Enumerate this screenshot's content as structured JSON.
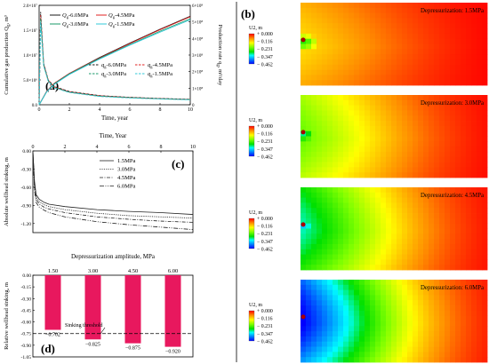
{
  "panel_a": {
    "label": "(a)",
    "ylabel_left": "Cumulative gas production Q",
    "ylabel_left_sub": "g",
    "ylabel_left_unit": ", m³",
    "ylabel_right": "Production rate q",
    "ylabel_right_sub": "g",
    "ylabel_right_unit": ", m³/day",
    "xlabel": "Time, year",
    "y_ticks_left": [
      "0.0",
      "5.0×10⁶",
      "1.0×10⁷",
      "1.5×10⁷",
      "2.0×10⁷"
    ],
    "y_ticks_right": [
      "0",
      "1×10⁸",
      "2×10⁸",
      "3×10⁸",
      "4×10⁸",
      "5×10⁸",
      "6×10⁸"
    ],
    "x_ticks": [
      "0",
      "2",
      "4",
      "6",
      "8",
      "10"
    ],
    "legend_Q": [
      {
        "sym": "Q",
        "sub": "g",
        "val": "-6.0MPa",
        "color": "#1a1a1a"
      },
      {
        "sym": "Q",
        "sub": "g",
        "val": "-4.5MPa",
        "color": "#e02020"
      },
      {
        "sym": "Q",
        "sub": "g",
        "val": "-3.0MPa",
        "color": "#1a9a6a"
      },
      {
        "sym": "Q",
        "sub": "g",
        "val": "-1.5MPa",
        "color": "#30c8d8"
      }
    ],
    "legend_q": [
      {
        "sym": "q",
        "sub": "g",
        "val": "-6.0MPa",
        "color": "#1a1a1a"
      },
      {
        "sym": "q",
        "sub": "g",
        "val": "-4.5MPa",
        "color": "#e02020"
      },
      {
        "sym": "q",
        "sub": "g",
        "val": "-3.0MPa",
        "color": "#1a9a6a"
      },
      {
        "sym": "q",
        "sub": "g",
        "val": "-1.5MPa",
        "color": "#30c8d8"
      }
    ]
  },
  "panel_b": {
    "label": "(b)",
    "contours": [
      {
        "title": "Depressurization: 1.5MPa",
        "scale": 0.18
      },
      {
        "title": "Depressurization: 3.0MPa",
        "scale": 0.42
      },
      {
        "title": "Depressurization: 4.5MPa",
        "scale": 0.65
      },
      {
        "title": "Depressurization: 6.0MPa",
        "scale": 1.0
      }
    ],
    "legend_title": "U2, m",
    "legend_values": [
      "+ 0.000",
      "− 0.116",
      "− 0.231",
      "− 0.347",
      "− 0.462"
    ]
  },
  "panel_c": {
    "label": "(c)",
    "xlabel": "Time, Year",
    "ylabel": "Absolute wellhead sinking, m",
    "x_ticks": [
      "0",
      "2",
      "4",
      "6",
      "8",
      "10"
    ],
    "y_ticks": [
      "0.00",
      "-0.30",
      "-0.60",
      "-0.90",
      "-1.20"
    ],
    "legend": [
      "1.5MPa",
      "3.0MPa",
      "4.5MPa",
      "6.0MPa"
    ]
  },
  "panel_d": {
    "label": "(d)",
    "xlabel": "Depressurization amplitude, MPa",
    "ylabel": "Relative wellhead sinking, m",
    "threshold_label": "Sinking threshold",
    "y_ticks": [
      "0.00",
      "-0.15",
      "-0.30",
      "-0.45",
      "-0.60",
      "-0.75",
      "-0.90",
      "-1.05"
    ],
    "bar_color": "#e8185e"
  },
  "chart_data": [
    {
      "type": "line",
      "title": "",
      "xlabel": "Time, year",
      "ylabel": "Cumulative gas production Qg, m³",
      "ylabel_right": "Production rate qg, m³/day",
      "xlim": [
        0,
        10
      ],
      "ylim": [
        0,
        20000000
      ],
      "ylim_right": [
        0,
        600000000
      ],
      "series": [
        {
          "name": "Qg-6.0MPa",
          "axis": "left",
          "x": [
            0,
            0.5,
            1,
            2,
            4,
            6,
            8,
            10
          ],
          "values": [
            0,
            2700000,
            4300000,
            6300000,
            9500000,
            12400000,
            15200000,
            17800000
          ]
        },
        {
          "name": "Qg-4.5MPa",
          "axis": "left",
          "x": [
            0,
            0.5,
            1,
            2,
            4,
            6,
            8,
            10
          ],
          "values": [
            0,
            2700000,
            4300000,
            6300000,
            9400000,
            12300000,
            15100000,
            17700000
          ]
        },
        {
          "name": "Qg-3.0MPa",
          "axis": "left",
          "x": [
            0,
            0.5,
            1,
            2,
            4,
            6,
            8,
            10
          ],
          "values": [
            0,
            2600000,
            4200000,
            6200000,
            9300000,
            12100000,
            14800000,
            17300000
          ]
        },
        {
          "name": "Qg-1.5MPa",
          "axis": "left",
          "x": [
            0,
            0.5,
            1,
            2,
            4,
            6,
            8,
            10
          ],
          "values": [
            0,
            2600000,
            4100000,
            6100000,
            9200000,
            12000000,
            14600000,
            17100000
          ]
        },
        {
          "name": "qg-6.0MPa",
          "axis": "right",
          "x": [
            0,
            0.1,
            0.3,
            0.6,
            1,
            2,
            4,
            6,
            8,
            10
          ],
          "values": [
            0,
            560000000,
            250000000,
            150000000,
            110000000,
            80000000,
            55000000,
            45000000,
            38000000,
            33000000
          ]
        },
        {
          "name": "qg-4.5MPa",
          "axis": "right",
          "x": [
            0,
            0.1,
            0.3,
            0.6,
            1,
            2,
            4,
            6,
            8,
            10
          ],
          "values": [
            0,
            540000000,
            245000000,
            148000000,
            108000000,
            78000000,
            54000000,
            44000000,
            37000000,
            32000000
          ]
        },
        {
          "name": "qg-3.0MPa",
          "axis": "right",
          "x": [
            0,
            0.1,
            0.3,
            0.6,
            1,
            2,
            4,
            6,
            8,
            10
          ],
          "values": [
            0,
            520000000,
            240000000,
            145000000,
            105000000,
            76000000,
            52000000,
            43000000,
            36000000,
            31000000
          ]
        },
        {
          "name": "qg-1.5MPa",
          "axis": "right",
          "x": [
            0,
            0.1,
            0.3,
            0.6,
            1,
            2,
            4,
            6,
            8,
            10
          ],
          "values": [
            0,
            500000000,
            235000000,
            142000000,
            102000000,
            74000000,
            50000000,
            41000000,
            35000000,
            30000000
          ]
        }
      ]
    },
    {
      "type": "line",
      "title": "",
      "xlabel": "Time, Year",
      "ylabel": "Absolute wellhead sinking, m",
      "xlim": [
        0,
        10
      ],
      "ylim": [
        -1.35,
        0
      ],
      "series": [
        {
          "name": "1.5MPa",
          "x": [
            0,
            0.1,
            0.2,
            0.4,
            0.7,
            1,
            2,
            4,
            6,
            8,
            10
          ],
          "values": [
            0,
            -0.5,
            -0.72,
            -0.8,
            -0.85,
            -0.88,
            -0.92,
            -0.97,
            -1.0,
            -1.02,
            -1.05
          ]
        },
        {
          "name": "3.0MPa",
          "x": [
            0,
            0.1,
            0.2,
            0.4,
            0.7,
            1,
            2,
            4,
            6,
            8,
            10
          ],
          "values": [
            0,
            -0.55,
            -0.76,
            -0.84,
            -0.89,
            -0.92,
            -0.97,
            -1.03,
            -1.07,
            -1.09,
            -1.11
          ]
        },
        {
          "name": "4.5MPa",
          "x": [
            0,
            0.1,
            0.2,
            0.4,
            0.7,
            1,
            2,
            4,
            6,
            8,
            10
          ],
          "values": [
            0,
            -0.6,
            -0.8,
            -0.88,
            -0.93,
            -0.96,
            -1.02,
            -1.09,
            -1.13,
            -1.16,
            -1.18
          ]
        },
        {
          "name": "6.0MPa",
          "x": [
            0,
            0.1,
            0.2,
            0.4,
            0.7,
            1,
            2,
            4,
            6,
            8,
            10
          ],
          "values": [
            0,
            -0.65,
            -0.85,
            -0.93,
            -0.98,
            -1.02,
            -1.09,
            -1.17,
            -1.22,
            -1.26,
            -1.3
          ]
        }
      ]
    },
    {
      "type": "bar",
      "title": "",
      "xlabel": "Depressurization amplitude, MPa",
      "ylabel": "Relative wellhead sinking, m",
      "categories": [
        "1.50",
        "3.00",
        "4.50",
        "6.00"
      ],
      "values": [
        -0.702,
        -0.825,
        -0.875,
        -0.92
      ],
      "value_labels": [
        "−0.702",
        "−0.825",
        "−0.875",
        "−0.920"
      ],
      "threshold": -0.75,
      "ylim": [
        -1.05,
        0
      ]
    }
  ]
}
